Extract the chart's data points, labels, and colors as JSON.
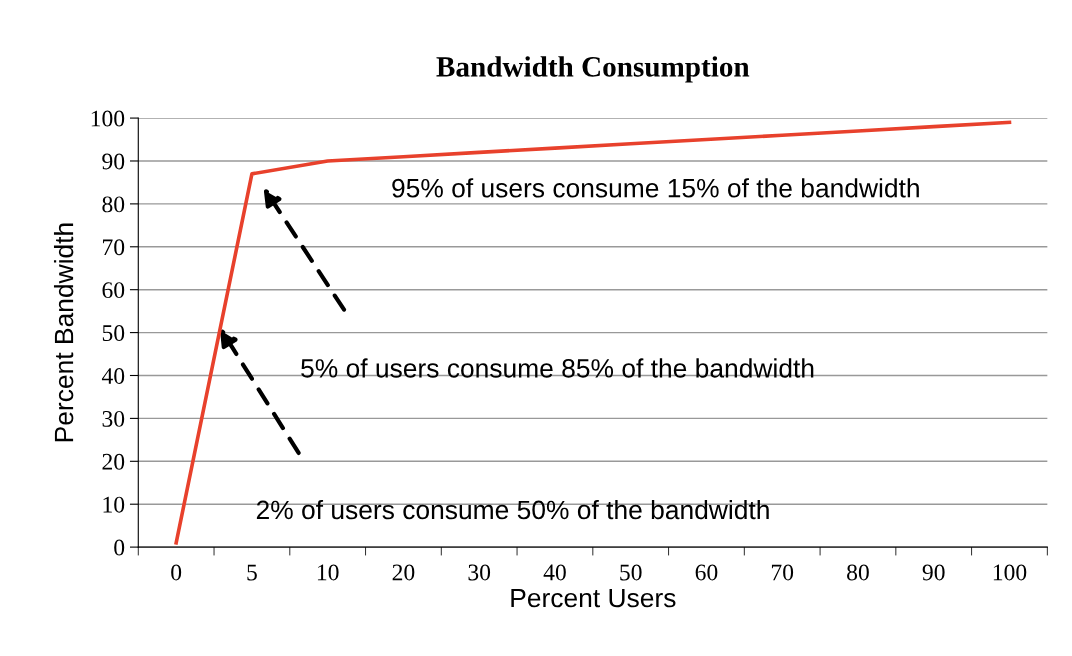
{
  "chart_data": {
    "type": "line",
    "title": "Bandwidth Consumption",
    "xlabel": "Percent Users",
    "ylabel": "Percent Bandwidth",
    "categories": [
      "0",
      "5",
      "10",
      "20",
      "30",
      "40",
      "50",
      "60",
      "70",
      "80",
      "90",
      "100"
    ],
    "series": [
      {
        "color": "#e8412c",
        "values": [
          1,
          87,
          90,
          91,
          92,
          93,
          94,
          95,
          96,
          97,
          98,
          99
        ]
      }
    ],
    "ylim": [
      0,
      100
    ],
    "yticks": [
      0,
      10,
      20,
      30,
      40,
      50,
      60,
      70,
      80,
      90,
      100
    ],
    "grid": "y",
    "legend": false,
    "marker": "none",
    "line_style": "solid",
    "annotations": [
      "95% of users consume 15% of the bandwidth",
      "5% of users consume 85% of the bandwidth",
      "2% of users consume 50% of the bandwidth"
    ]
  }
}
